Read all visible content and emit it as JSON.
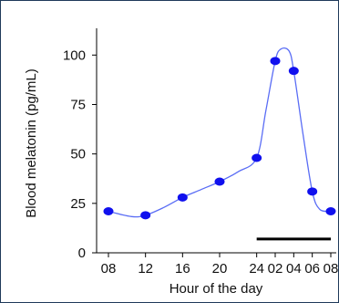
{
  "chart_data": {
    "type": "line",
    "title": "",
    "xlabel": "Hour of the day",
    "ylabel": "Blood melatonin (pg/mL)",
    "categories": [
      "08",
      "12",
      "16",
      "20",
      "24",
      "02",
      "04",
      "06",
      "08"
    ],
    "x_positions": [
      8,
      12,
      16,
      20,
      24,
      26,
      28,
      30,
      32
    ],
    "ylim": [
      0,
      120
    ],
    "yticks": [
      0,
      25,
      50,
      75,
      100
    ],
    "series": [
      {
        "values": [
          21,
          19,
          28,
          36,
          48,
          97,
          92,
          31,
          21
        ]
      }
    ],
    "curve_points": [
      [
        8,
        21
      ],
      [
        10.5,
        18.3
      ],
      [
        12,
        19
      ],
      [
        14,
        23
      ],
      [
        16,
        28
      ],
      [
        18,
        32
      ],
      [
        20,
        36
      ],
      [
        22,
        41
      ],
      [
        24,
        48
      ],
      [
        25,
        72
      ],
      [
        26,
        97
      ],
      [
        26.6,
        103
      ],
      [
        27.5,
        102
      ],
      [
        28,
        92
      ],
      [
        29,
        60
      ],
      [
        30,
        31
      ],
      [
        30.8,
        22
      ],
      [
        32,
        21
      ]
    ],
    "dark_period": [
      24,
      32
    ],
    "dark_period_level": 7,
    "legend": "none",
    "grid": false,
    "colors": {
      "line": "#5a6df5",
      "markers": "#1010ee",
      "dark_bar": "#000000",
      "axes": "#000000",
      "border": "#1f3a5a"
    }
  }
}
